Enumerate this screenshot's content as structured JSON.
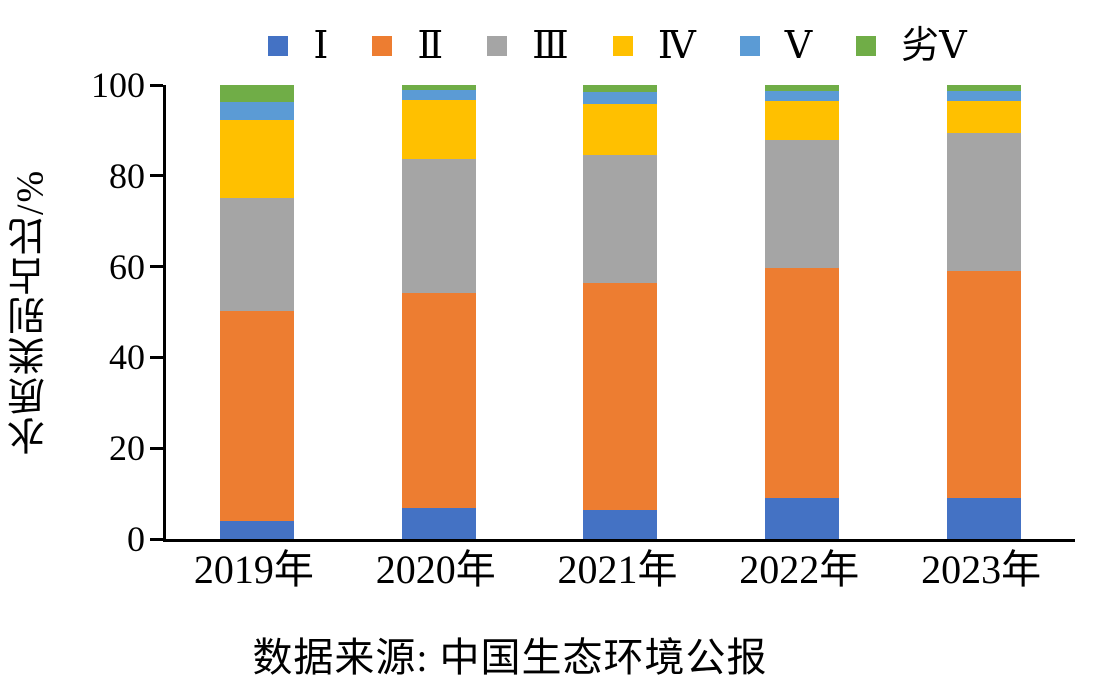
{
  "caption": "数据来源: 中国生态环境公报",
  "background": "#FFFFFF",
  "axis_color": "#000000",
  "chart_data": {
    "type": "bar",
    "stacked": true,
    "percent_stacked": true,
    "title": "",
    "xlabel": "",
    "ylabel": "水质类别占比/%",
    "ylim": [
      0,
      100
    ],
    "yticks": [
      0,
      20,
      40,
      60,
      80,
      100
    ],
    "grid": false,
    "legend_position": "top",
    "categories": [
      "2019年",
      "2020年",
      "2021年",
      "2022年",
      "2023年"
    ],
    "series": [
      {
        "name": "Ⅰ",
        "color": "#4472C4",
        "values": [
          4.0,
          6.9,
          6.5,
          9.0,
          9.0
        ]
      },
      {
        "name": "Ⅱ",
        "color": "#ED7D31",
        "values": [
          46.2,
          47.2,
          49.8,
          50.6,
          50.1
        ]
      },
      {
        "name": "Ⅲ",
        "color": "#A5A5A5",
        "values": [
          25.0,
          29.5,
          28.4,
          28.3,
          30.4
        ]
      },
      {
        "name": "Ⅳ",
        "color": "#FFC000",
        "values": [
          17.0,
          13.0,
          11.1,
          8.5,
          7.0
        ]
      },
      {
        "name": "Ⅴ",
        "color": "#5B9BD5",
        "values": [
          4.0,
          2.2,
          2.6,
          2.2,
          2.1
        ]
      },
      {
        "name": "劣Ⅴ",
        "color": "#70AD47",
        "values": [
          3.8,
          1.2,
          1.6,
          1.4,
          1.4
        ]
      }
    ]
  }
}
